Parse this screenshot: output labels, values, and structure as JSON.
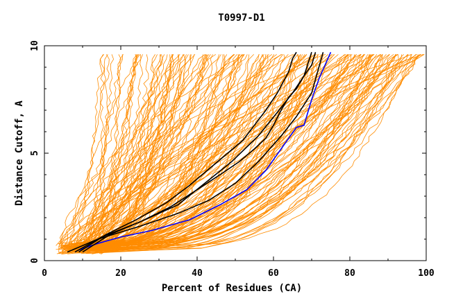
{
  "chart_data": {
    "type": "line",
    "title": "T0997-D1",
    "xlabel": "Percent of Residues (CA)",
    "ylabel": "Distance Cutoff, A",
    "xlim": [
      0,
      100
    ],
    "ylim": [
      0,
      10
    ],
    "x_ticks": [
      "0",
      "20",
      "40",
      "60",
      "80",
      "100"
    ],
    "y_ticks": [
      "0",
      "5",
      "10"
    ],
    "grid": false,
    "colors": {
      "background_models": "#ff8c00",
      "reference_models": "#000000",
      "highlighted_model": "#0000ff"
    },
    "highlighted_series": [
      {
        "color": "#0000ff",
        "x": [
          9,
          14,
          20,
          28,
          38,
          46,
          53,
          58,
          62,
          66,
          68,
          70,
          72,
          75
        ],
        "y": [
          0.5,
          0.8,
          1.1,
          1.4,
          1.9,
          2.6,
          3.3,
          4.2,
          5.2,
          6.2,
          6.3,
          7.5,
          8.5,
          9.7
        ]
      },
      {
        "color": "#000000",
        "x": [
          6,
          14,
          25,
          35,
          43,
          50,
          56,
          62,
          66,
          70,
          73
        ],
        "y": [
          0.4,
          1.0,
          1.6,
          2.2,
          2.8,
          3.6,
          4.6,
          5.8,
          6.7,
          7.8,
          9.7
        ]
      },
      {
        "color": "#000000",
        "x": [
          8,
          15,
          25,
          35,
          42,
          49,
          56,
          61,
          65,
          68,
          70
        ],
        "y": [
          0.4,
          1.1,
          1.8,
          2.6,
          3.6,
          4.6,
          5.8,
          6.9,
          7.8,
          8.6,
          9.7
        ]
      },
      {
        "color": "#000000",
        "x": [
          9,
          16,
          24,
          32,
          38,
          44,
          48,
          52,
          55,
          58,
          61,
          64,
          65,
          66
        ],
        "y": [
          0.4,
          1.2,
          1.9,
          2.7,
          3.5,
          4.4,
          5.0,
          5.6,
          6.3,
          7.0,
          7.8,
          8.8,
          9.4,
          9.7
        ]
      },
      {
        "color": "#000000",
        "x": [
          10,
          17,
          25,
          33,
          40,
          46,
          51,
          55,
          58,
          60,
          62,
          64,
          66,
          68,
          70,
          71
        ],
        "y": [
          0.4,
          1.2,
          1.8,
          2.5,
          3.3,
          4.0,
          4.6,
          5.2,
          5.7,
          6.3,
          7.0,
          7.6,
          8.0,
          8.6,
          9.1,
          9.7
        ]
      }
    ],
    "background_series_note_count": 0
  }
}
